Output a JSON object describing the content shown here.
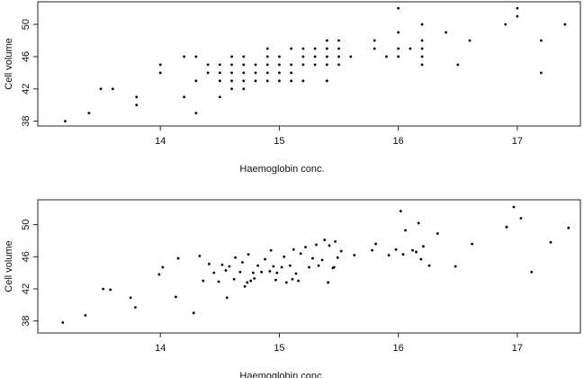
{
  "chart_data": [
    {
      "type": "scatter",
      "xlabel": "Haemoglobin conc.",
      "ylabel": "Cell volume",
      "xlim": [
        12.97,
        17.53
      ],
      "ylim": [
        37.4,
        52.8
      ],
      "xticks": [
        14,
        15,
        16,
        17
      ],
      "yticks": [
        38,
        42,
        46,
        50
      ],
      "color": "#000000",
      "x": [
        13.2,
        13.4,
        13.5,
        13.6,
        13.8,
        13.8,
        14.0,
        14.0,
        14.2,
        14.2,
        14.3,
        14.3,
        14.3,
        14.4,
        14.4,
        14.5,
        14.5,
        14.5,
        14.5,
        14.6,
        14.6,
        14.6,
        14.6,
        14.6,
        14.7,
        14.7,
        14.7,
        14.7,
        14.7,
        14.8,
        14.8,
        14.8,
        14.9,
        14.9,
        14.9,
        14.9,
        14.9,
        15.0,
        15.0,
        15.0,
        15.0,
        15.1,
        15.1,
        15.1,
        15.1,
        15.2,
        15.2,
        15.2,
        15.2,
        15.3,
        15.3,
        15.3,
        15.4,
        15.4,
        15.4,
        15.4,
        15.4,
        15.5,
        15.5,
        15.5,
        15.5,
        15.6,
        15.8,
        15.8,
        15.9,
        16.0,
        16.0,
        16.0,
        16.0,
        16.1,
        16.2,
        16.2,
        16.2,
        16.2,
        16.2,
        16.4,
        16.5,
        16.6,
        16.9,
        17.0,
        17.0,
        17.2,
        17.2,
        17.4
      ],
      "values": [
        38,
        39,
        42,
        42,
        41,
        40,
        45,
        44,
        46,
        41,
        46,
        43,
        39,
        45,
        44,
        45,
        44,
        43,
        41,
        46,
        45,
        44,
        43,
        42,
        46,
        45,
        44,
        43,
        42,
        45,
        44,
        43,
        47,
        46,
        45,
        44,
        43,
        46,
        45,
        44,
        43,
        47,
        45,
        44,
        43,
        47,
        46,
        45,
        43,
        47,
        46,
        45,
        48,
        47,
        46,
        45,
        43,
        48,
        47,
        46,
        45,
        46,
        48,
        47,
        46,
        52,
        49,
        47,
        46,
        47,
        50,
        48,
        47,
        46,
        45,
        49,
        45,
        48,
        50,
        52,
        51,
        48,
        44,
        50
      ]
    },
    {
      "type": "scatter",
      "xlabel": "Haemoglobin conc.",
      "ylabel": "Cell volume",
      "xlim": [
        12.97,
        17.53
      ],
      "ylim": [
        36.5,
        53.1
      ],
      "xticks": [
        14,
        15,
        16,
        17
      ],
      "yticks": [
        38,
        42,
        46,
        50
      ],
      "color": "#000000",
      "x": [
        13.18,
        13.37,
        13.52,
        13.58,
        13.75,
        13.79,
        14.02,
        13.99,
        14.15,
        14.13,
        14.33,
        14.36,
        14.28,
        14.41,
        14.45,
        14.52,
        14.55,
        14.49,
        14.56,
        14.63,
        14.58,
        14.67,
        14.62,
        14.71,
        14.74,
        14.69,
        14.78,
        14.76,
        14.73,
        14.82,
        14.85,
        14.79,
        14.93,
        14.88,
        14.95,
        14.92,
        14.97,
        15.04,
        15.02,
        14.98,
        15.06,
        15.12,
        15.09,
        15.14,
        15.11,
        15.22,
        15.18,
        15.25,
        15.16,
        15.31,
        15.28,
        15.33,
        15.38,
        15.42,
        15.36,
        15.45,
        15.41,
        15.47,
        15.52,
        15.49,
        15.46,
        15.63,
        15.81,
        15.78,
        15.92,
        16.02,
        16.06,
        15.98,
        16.04,
        16.12,
        16.17,
        16.21,
        16.15,
        16.19,
        16.26,
        16.33,
        16.48,
        16.62,
        16.91,
        16.97,
        17.03,
        17.12,
        17.28,
        17.43
      ],
      "values": [
        37.8,
        38.7,
        42.0,
        41.9,
        40.9,
        39.7,
        44.7,
        43.8,
        45.8,
        41.0,
        46.1,
        43.0,
        39.0,
        45.1,
        44.0,
        45.0,
        44.3,
        42.9,
        40.9,
        45.9,
        44.8,
        44.1,
        43.2,
        42.3,
        46.3,
        45.3,
        44.0,
        43.0,
        42.8,
        44.9,
        44.1,
        43.3,
        46.8,
        45.7,
        44.8,
        44.2,
        43.1,
        46.0,
        44.7,
        44.0,
        42.8,
        46.9,
        44.9,
        43.9,
        43.2,
        47.2,
        46.4,
        44.7,
        43.0,
        47.5,
        45.8,
        44.9,
        48.1,
        47.4,
        45.6,
        44.6,
        42.8,
        47.9,
        46.7,
        45.9,
        44.7,
        46.2,
        47.6,
        46.8,
        46.2,
        51.7,
        49.3,
        46.9,
        46.3,
        46.8,
        50.2,
        47.3,
        46.6,
        45.7,
        44.9,
        48.9,
        44.8,
        47.6,
        49.7,
        52.2,
        50.8,
        44.1,
        47.8,
        49.6
      ]
    }
  ]
}
